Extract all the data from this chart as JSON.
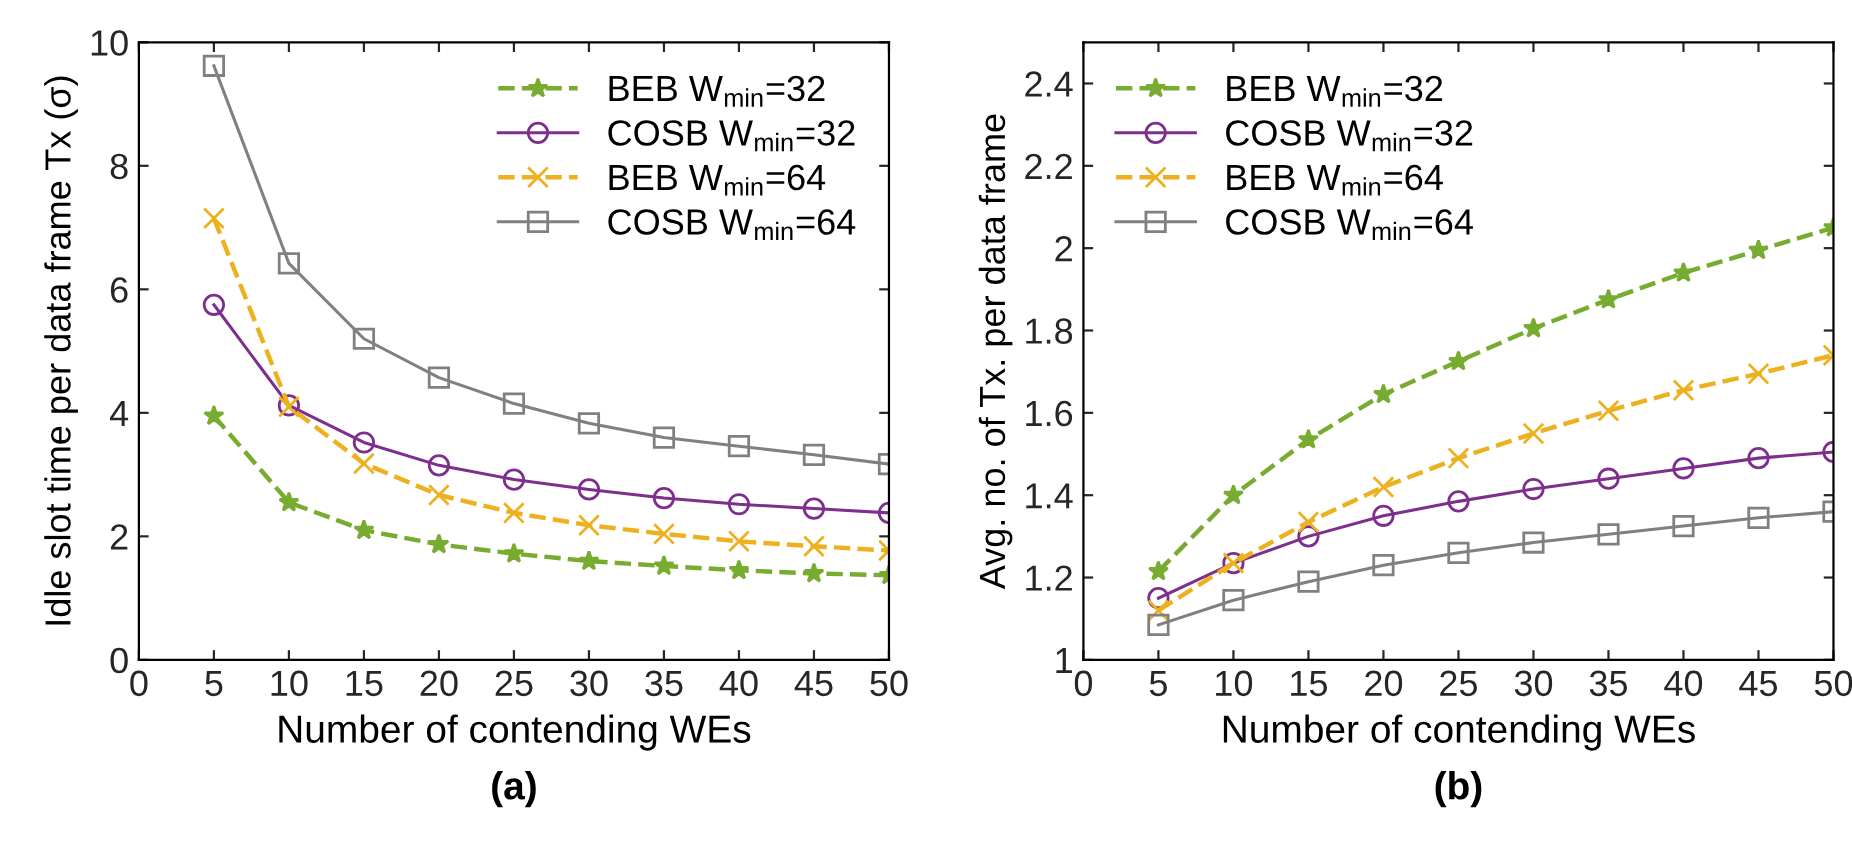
{
  "chart_data": [
    {
      "type": "line",
      "xlabel": "Number of contending WEs",
      "ylabel": "Idle slot time per data frame Tx (σ)",
      "x": [
        5,
        10,
        15,
        20,
        25,
        30,
        35,
        40,
        45,
        50
      ],
      "xlim": [
        0,
        50
      ],
      "xticks": [
        0,
        5,
        10,
        15,
        20,
        25,
        30,
        35,
        40,
        45,
        50
      ],
      "ylim": [
        0,
        10
      ],
      "yticks": [
        0,
        2,
        4,
        6,
        8,
        10
      ],
      "legend": "top right",
      "grid": false,
      "annotations": [
        "(a)"
      ],
      "series": [
        {
          "name": "BEB W$_{min}$=32",
          "color": "#77ac30",
          "marker": "star",
          "line_style": "dashed",
          "values": [
            3.95,
            2.55,
            2.1,
            1.87,
            1.72,
            1.6,
            1.52,
            1.45,
            1.4,
            1.37
          ]
        },
        {
          "name": "COSB W$_{min}$=32",
          "color": "#7e2f8e",
          "marker": "circle",
          "line_style": "solid",
          "values": [
            5.75,
            4.12,
            3.52,
            3.15,
            2.92,
            2.76,
            2.62,
            2.52,
            2.45,
            2.38
          ]
        },
        {
          "name": "BEB W$_{min}$=64",
          "color": "#edb120",
          "marker": "cross",
          "line_style": "dashed",
          "values": [
            7.15,
            4.1,
            3.18,
            2.67,
            2.38,
            2.18,
            2.04,
            1.92,
            1.84,
            1.77
          ]
        },
        {
          "name": "COSB W$_{min}$=64",
          "color": "#808080",
          "marker": "square",
          "line_style": "solid",
          "values": [
            9.62,
            6.42,
            5.2,
            4.57,
            4.15,
            3.83,
            3.6,
            3.46,
            3.32,
            3.17
          ]
        }
      ]
    },
    {
      "type": "line",
      "xlabel": "Number of contending WEs",
      "ylabel": "Avg. no. of Tx. per data frame",
      "x": [
        5,
        10,
        15,
        20,
        25,
        30,
        35,
        40,
        45,
        50
      ],
      "xlim": [
        0,
        50
      ],
      "xticks": [
        0,
        5,
        10,
        15,
        20,
        25,
        30,
        35,
        40,
        45,
        50
      ],
      "ylim": [
        1,
        2.5
      ],
      "yticks": [
        1,
        1.2,
        1.4,
        1.6,
        1.8,
        2,
        2.2,
        2.4
      ],
      "legend": "top left",
      "grid": false,
      "annotations": [
        "(b)"
      ],
      "series": [
        {
          "name": "BEB W$_{min}$=32",
          "color": "#77ac30",
          "marker": "star",
          "line_style": "dashed",
          "values": [
            1.215,
            1.4,
            1.535,
            1.645,
            1.725,
            1.805,
            1.875,
            1.94,
            1.995,
            2.05
          ]
        },
        {
          "name": "COSB W$_{min}$=32",
          "color": "#7e2f8e",
          "marker": "circle",
          "line_style": "solid",
          "values": [
            1.15,
            1.235,
            1.3,
            1.35,
            1.385,
            1.415,
            1.44,
            1.465,
            1.49,
            1.505
          ]
        },
        {
          "name": "BEB W$_{min}$=64",
          "color": "#edb120",
          "marker": "cross",
          "line_style": "dashed",
          "values": [
            1.12,
            1.235,
            1.335,
            1.42,
            1.49,
            1.55,
            1.605,
            1.655,
            1.695,
            1.74
          ]
        },
        {
          "name": "COSB W$_{min}$=64",
          "color": "#808080",
          "marker": "square",
          "line_style": "solid",
          "values": [
            1.085,
            1.145,
            1.19,
            1.23,
            1.26,
            1.285,
            1.305,
            1.325,
            1.345,
            1.36
          ]
        }
      ]
    }
  ]
}
